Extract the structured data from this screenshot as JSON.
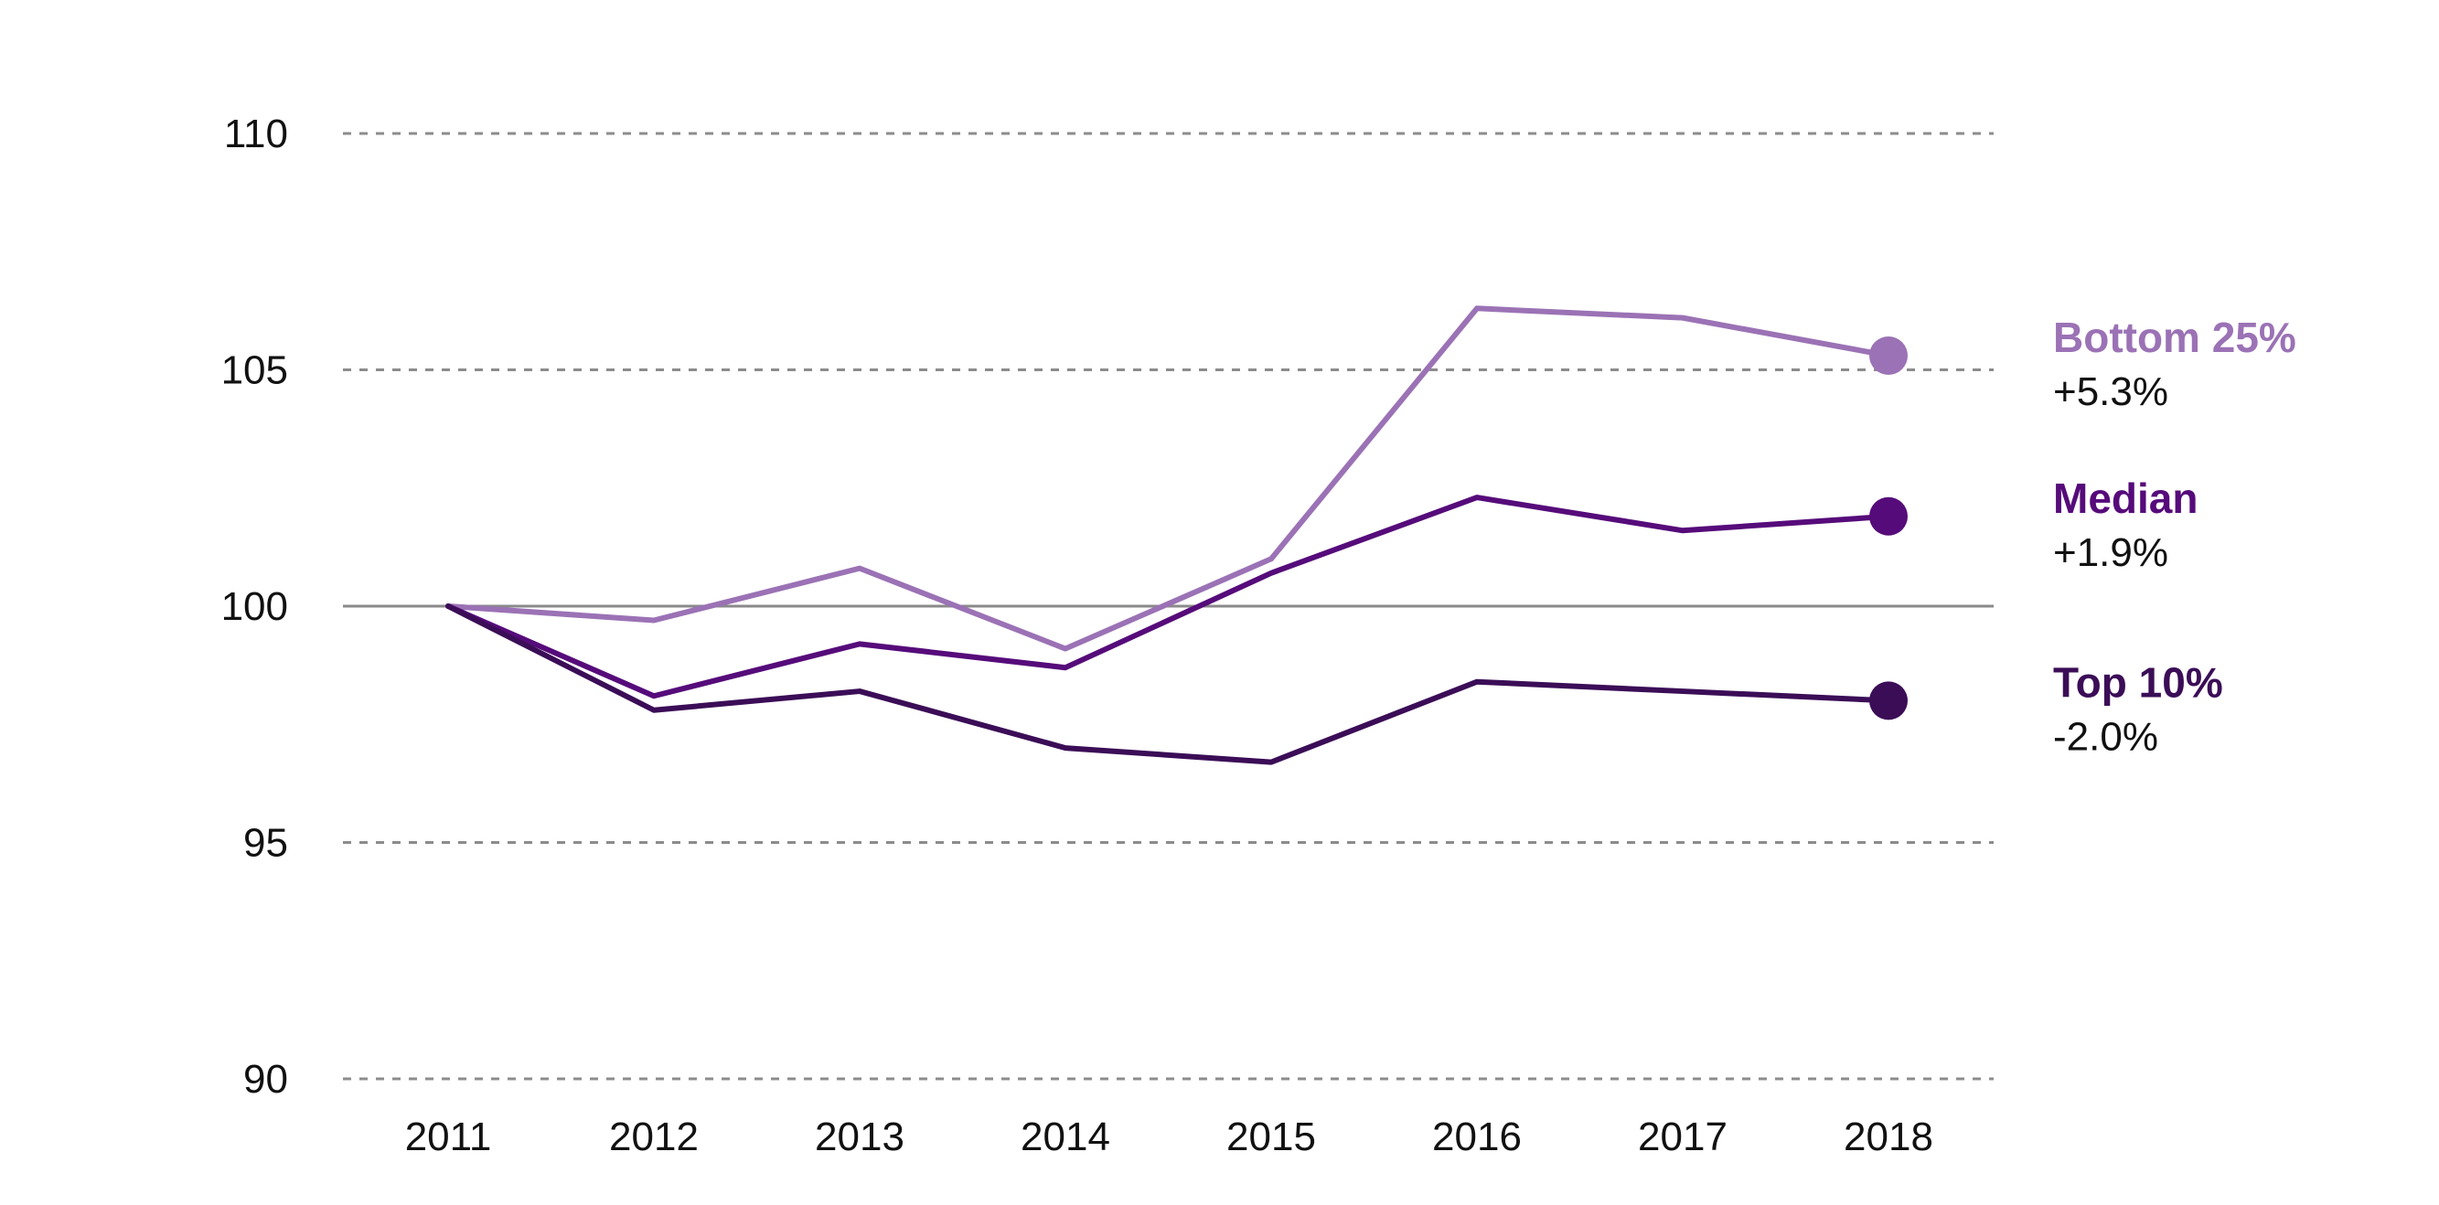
{
  "chart_data": {
    "type": "line",
    "title": "",
    "xlabel": "",
    "ylabel": "",
    "x": [
      "2011",
      "2012",
      "2013",
      "2014",
      "2015",
      "2016",
      "2017",
      "2018"
    ],
    "ylim": [
      90,
      110
    ],
    "yticks": [
      110,
      105,
      100,
      95,
      90
    ],
    "grid": true,
    "grid_style": "dashed",
    "baseline": 100,
    "legend": "end-of-line labels, right",
    "series": [
      {
        "name": "Bottom 25%",
        "change": "+5.3%",
        "color": "#9b72b5",
        "values": [
          100.0,
          99.7,
          100.8,
          99.1,
          101.0,
          106.3,
          106.1,
          105.3
        ]
      },
      {
        "name": "Median",
        "change": "+1.9%",
        "color": "#560b7a",
        "values": [
          100.0,
          98.1,
          99.2,
          98.7,
          100.7,
          102.3,
          101.6,
          101.9
        ]
      },
      {
        "name": "Top 10%",
        "change": "-2.0%",
        "color": "#3b0d57",
        "values": [
          100.0,
          97.8,
          98.2,
          97.0,
          96.7,
          98.4,
          98.2,
          98.0
        ]
      }
    ]
  }
}
